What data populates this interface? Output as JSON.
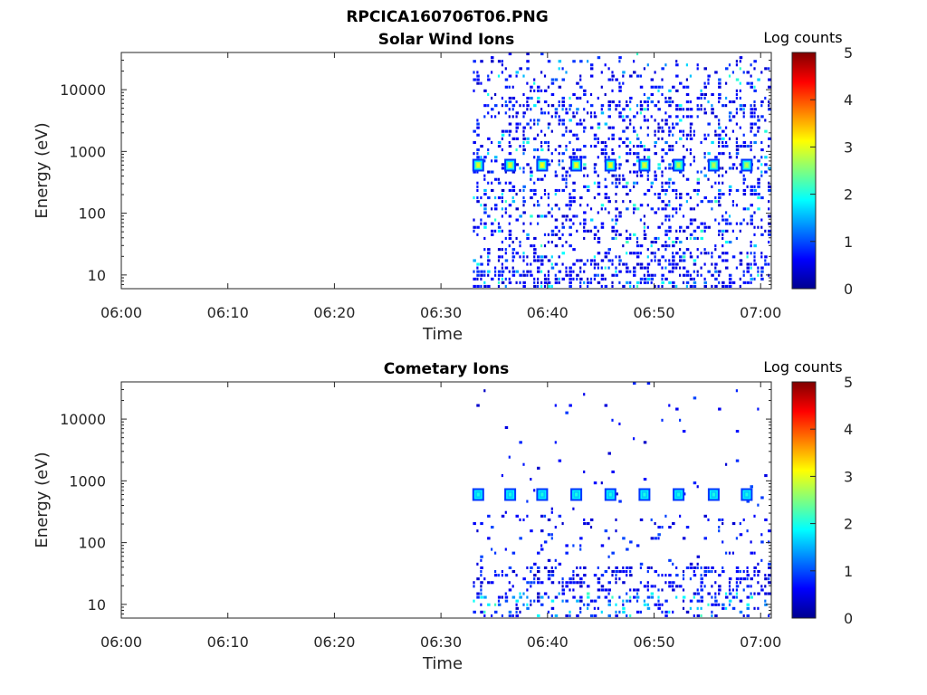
{
  "figure": {
    "title": "RPCICA160706T06.PNG"
  },
  "chart_data": [
    {
      "type": "heatmap",
      "title": "Solar Wind Ions",
      "xlabel": "Time",
      "ylabel": "Energy (eV)",
      "y_scale": "log",
      "xlim": [
        "06:00",
        "07:01"
      ],
      "ylim": [
        6,
        40000
      ],
      "x_ticks": [
        "06:00",
        "06:10",
        "06:20",
        "06:30",
        "06:40",
        "06:50",
        "07:00"
      ],
      "y_ticks": [
        "10",
        "100",
        "1000",
        "10000"
      ],
      "colorbar": {
        "label": "Log counts",
        "min": 0,
        "max": 5,
        "ticks": [
          "0",
          "1",
          "2",
          "3",
          "4",
          "5"
        ]
      },
      "data_start": "06:33",
      "data_end": "07:01",
      "peak_energy_eV": 600,
      "peaks": [
        {
          "time": "06:33.5",
          "log_counts": 3.0
        },
        {
          "time": "06:36.5",
          "log_counts": 3.0
        },
        {
          "time": "06:39.5",
          "log_counts": 3.1
        },
        {
          "time": "06:42.7",
          "log_counts": 3.1
        },
        {
          "time": "06:45.9",
          "log_counts": 3.1
        },
        {
          "time": "06:49.1",
          "log_counts": 3.0
        },
        {
          "time": "06:52.3",
          "log_counts": 2.8
        },
        {
          "time": "06:55.6",
          "log_counts": 2.8
        },
        {
          "time": "06:58.7",
          "log_counts": 2.8
        }
      ],
      "grid": false
    },
    {
      "type": "heatmap",
      "title": "Cometary Ions",
      "xlabel": "Time",
      "ylabel": "Energy (eV)",
      "y_scale": "log",
      "xlim": [
        "06:00",
        "07:01"
      ],
      "ylim": [
        6,
        40000
      ],
      "x_ticks": [
        "06:00",
        "06:10",
        "06:20",
        "06:30",
        "06:40",
        "06:50",
        "07:00"
      ],
      "y_ticks": [
        "10",
        "100",
        "1000",
        "10000"
      ],
      "colorbar": {
        "label": "Log counts",
        "min": 0,
        "max": 5,
        "ticks": [
          "0",
          "1",
          "2",
          "3",
          "4",
          "5"
        ]
      },
      "data_start": "06:33",
      "data_end": "07:01",
      "peak_energy_eV": 600,
      "peaks": [
        {
          "time": "06:33.5",
          "log_counts": 2.0
        },
        {
          "time": "06:36.5",
          "log_counts": 2.0
        },
        {
          "time": "06:39.5",
          "log_counts": 2.0
        },
        {
          "time": "06:42.7",
          "log_counts": 2.0
        },
        {
          "time": "06:45.9",
          "log_counts": 2.0
        },
        {
          "time": "06:49.1",
          "log_counts": 2.0
        },
        {
          "time": "06:52.3",
          "log_counts": 2.0
        },
        {
          "time": "06:55.6",
          "log_counts": 2.0
        },
        {
          "time": "06:58.7",
          "log_counts": 2.0
        }
      ],
      "grid": false
    }
  ]
}
